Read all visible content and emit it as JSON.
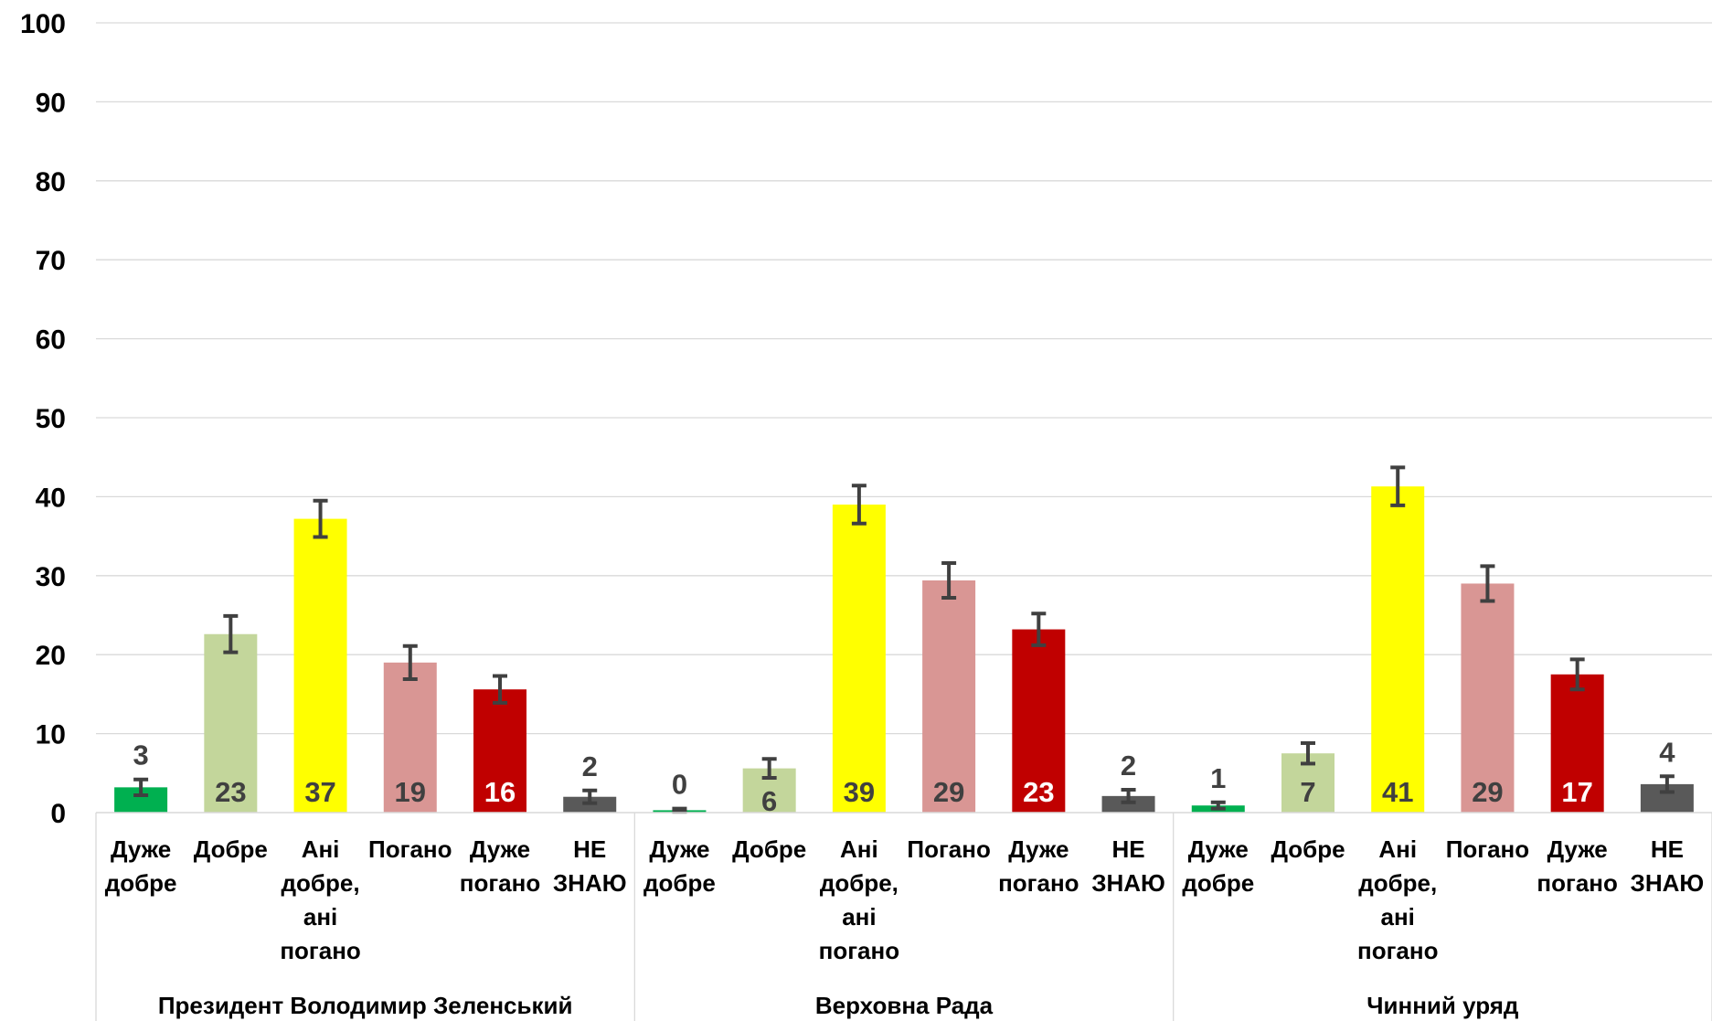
{
  "chart_data": {
    "type": "bar",
    "title": "",
    "xlabel": "",
    "ylabel": "",
    "ylim": [
      0,
      100
    ],
    "yticks": [
      0,
      10,
      20,
      30,
      40,
      50,
      60,
      70,
      80,
      90,
      100
    ],
    "grid": true,
    "colors": {
      "very_good": "#00b050",
      "good": "#c3d69b",
      "neither": "#ffff00",
      "bad": "#d99694",
      "very_bad": "#c00000",
      "dont_know": "#595959",
      "error_bar": "#404040",
      "gridline": "#d9d9d9",
      "axis_text": "#000000",
      "label_dark": "#404040",
      "label_light": "#ffffff"
    },
    "groups": [
      {
        "name": "Президент Володимир Зеленський",
        "bars": [
          {
            "label_lines": [
              "Дуже",
              "добре"
            ],
            "value": 3.2,
            "data_label": "3",
            "error": 1.0,
            "color_key": "very_good",
            "label_position": "above",
            "label_color": "label_dark"
          },
          {
            "label_lines": [
              "Добре"
            ],
            "value": 22.6,
            "data_label": "23",
            "error": 2.3,
            "color_key": "good",
            "label_position": "inside",
            "label_color": "label_dark"
          },
          {
            "label_lines": [
              "Ані",
              "добре,",
              "ані",
              "погано"
            ],
            "value": 37.2,
            "data_label": "37",
            "error": 2.3,
            "color_key": "neither",
            "label_position": "inside",
            "label_color": "label_dark"
          },
          {
            "label_lines": [
              "Погано"
            ],
            "value": 19.0,
            "data_label": "19",
            "error": 2.1,
            "color_key": "bad",
            "label_position": "inside",
            "label_color": "label_dark"
          },
          {
            "label_lines": [
              "Дуже",
              "погано"
            ],
            "value": 15.6,
            "data_label": "16",
            "error": 1.7,
            "color_key": "very_bad",
            "label_position": "inside",
            "label_color": "label_light"
          },
          {
            "label_lines": [
              "НЕ",
              "ЗНАЮ"
            ],
            "value": 2.0,
            "data_label": "2",
            "error": 0.8,
            "color_key": "dont_know",
            "label_position": "above",
            "label_color": "label_dark"
          }
        ]
      },
      {
        "name": "Верховна Рада",
        "bars": [
          {
            "label_lines": [
              "Дуже",
              "добре"
            ],
            "value": 0.3,
            "data_label": "0",
            "error": 0.2,
            "color_key": "very_good",
            "label_position": "above",
            "label_color": "label_dark"
          },
          {
            "label_lines": [
              "Добре"
            ],
            "value": 5.6,
            "data_label": "6",
            "error": 1.2,
            "color_key": "good",
            "label_position": "inside",
            "label_color": "label_dark"
          },
          {
            "label_lines": [
              "Ані",
              "добре,",
              "ані",
              "погано"
            ],
            "value": 39.0,
            "data_label": "39",
            "error": 2.4,
            "color_key": "neither",
            "label_position": "inside",
            "label_color": "label_dark"
          },
          {
            "label_lines": [
              "Погано"
            ],
            "value": 29.4,
            "data_label": "29",
            "error": 2.2,
            "color_key": "bad",
            "label_position": "inside",
            "label_color": "label_dark"
          },
          {
            "label_lines": [
              "Дуже",
              "погано"
            ],
            "value": 23.2,
            "data_label": "23",
            "error": 2.0,
            "color_key": "very_bad",
            "label_position": "inside",
            "label_color": "label_light"
          },
          {
            "label_lines": [
              "НЕ",
              "ЗНАЮ"
            ],
            "value": 2.1,
            "data_label": "2",
            "error": 0.8,
            "color_key": "dont_know",
            "label_position": "above",
            "label_color": "label_dark"
          }
        ]
      },
      {
        "name": "Чинний уряд",
        "bars": [
          {
            "label_lines": [
              "Дуже",
              "добре"
            ],
            "value": 0.9,
            "data_label": "1",
            "error": 0.4,
            "color_key": "very_good",
            "label_position": "above",
            "label_color": "label_dark"
          },
          {
            "label_lines": [
              "Добре"
            ],
            "value": 7.5,
            "data_label": "7",
            "error": 1.3,
            "color_key": "good",
            "label_position": "inside",
            "label_color": "label_dark"
          },
          {
            "label_lines": [
              "Ані",
              "добре,",
              "ані",
              "погано"
            ],
            "value": 41.3,
            "data_label": "41",
            "error": 2.4,
            "color_key": "neither",
            "label_position": "inside",
            "label_color": "label_dark"
          },
          {
            "label_lines": [
              "Погано"
            ],
            "value": 29.0,
            "data_label": "29",
            "error": 2.2,
            "color_key": "bad",
            "label_position": "inside",
            "label_color": "label_dark"
          },
          {
            "label_lines": [
              "Дуже",
              "погано"
            ],
            "value": 17.5,
            "data_label": "17",
            "error": 1.9,
            "color_key": "very_bad",
            "label_position": "inside",
            "label_color": "label_light"
          },
          {
            "label_lines": [
              "НЕ",
              "ЗНАЮ"
            ],
            "value": 3.6,
            "data_label": "4",
            "error": 1.0,
            "color_key": "dont_know",
            "label_position": "above",
            "label_color": "label_dark"
          }
        ]
      }
    ]
  }
}
